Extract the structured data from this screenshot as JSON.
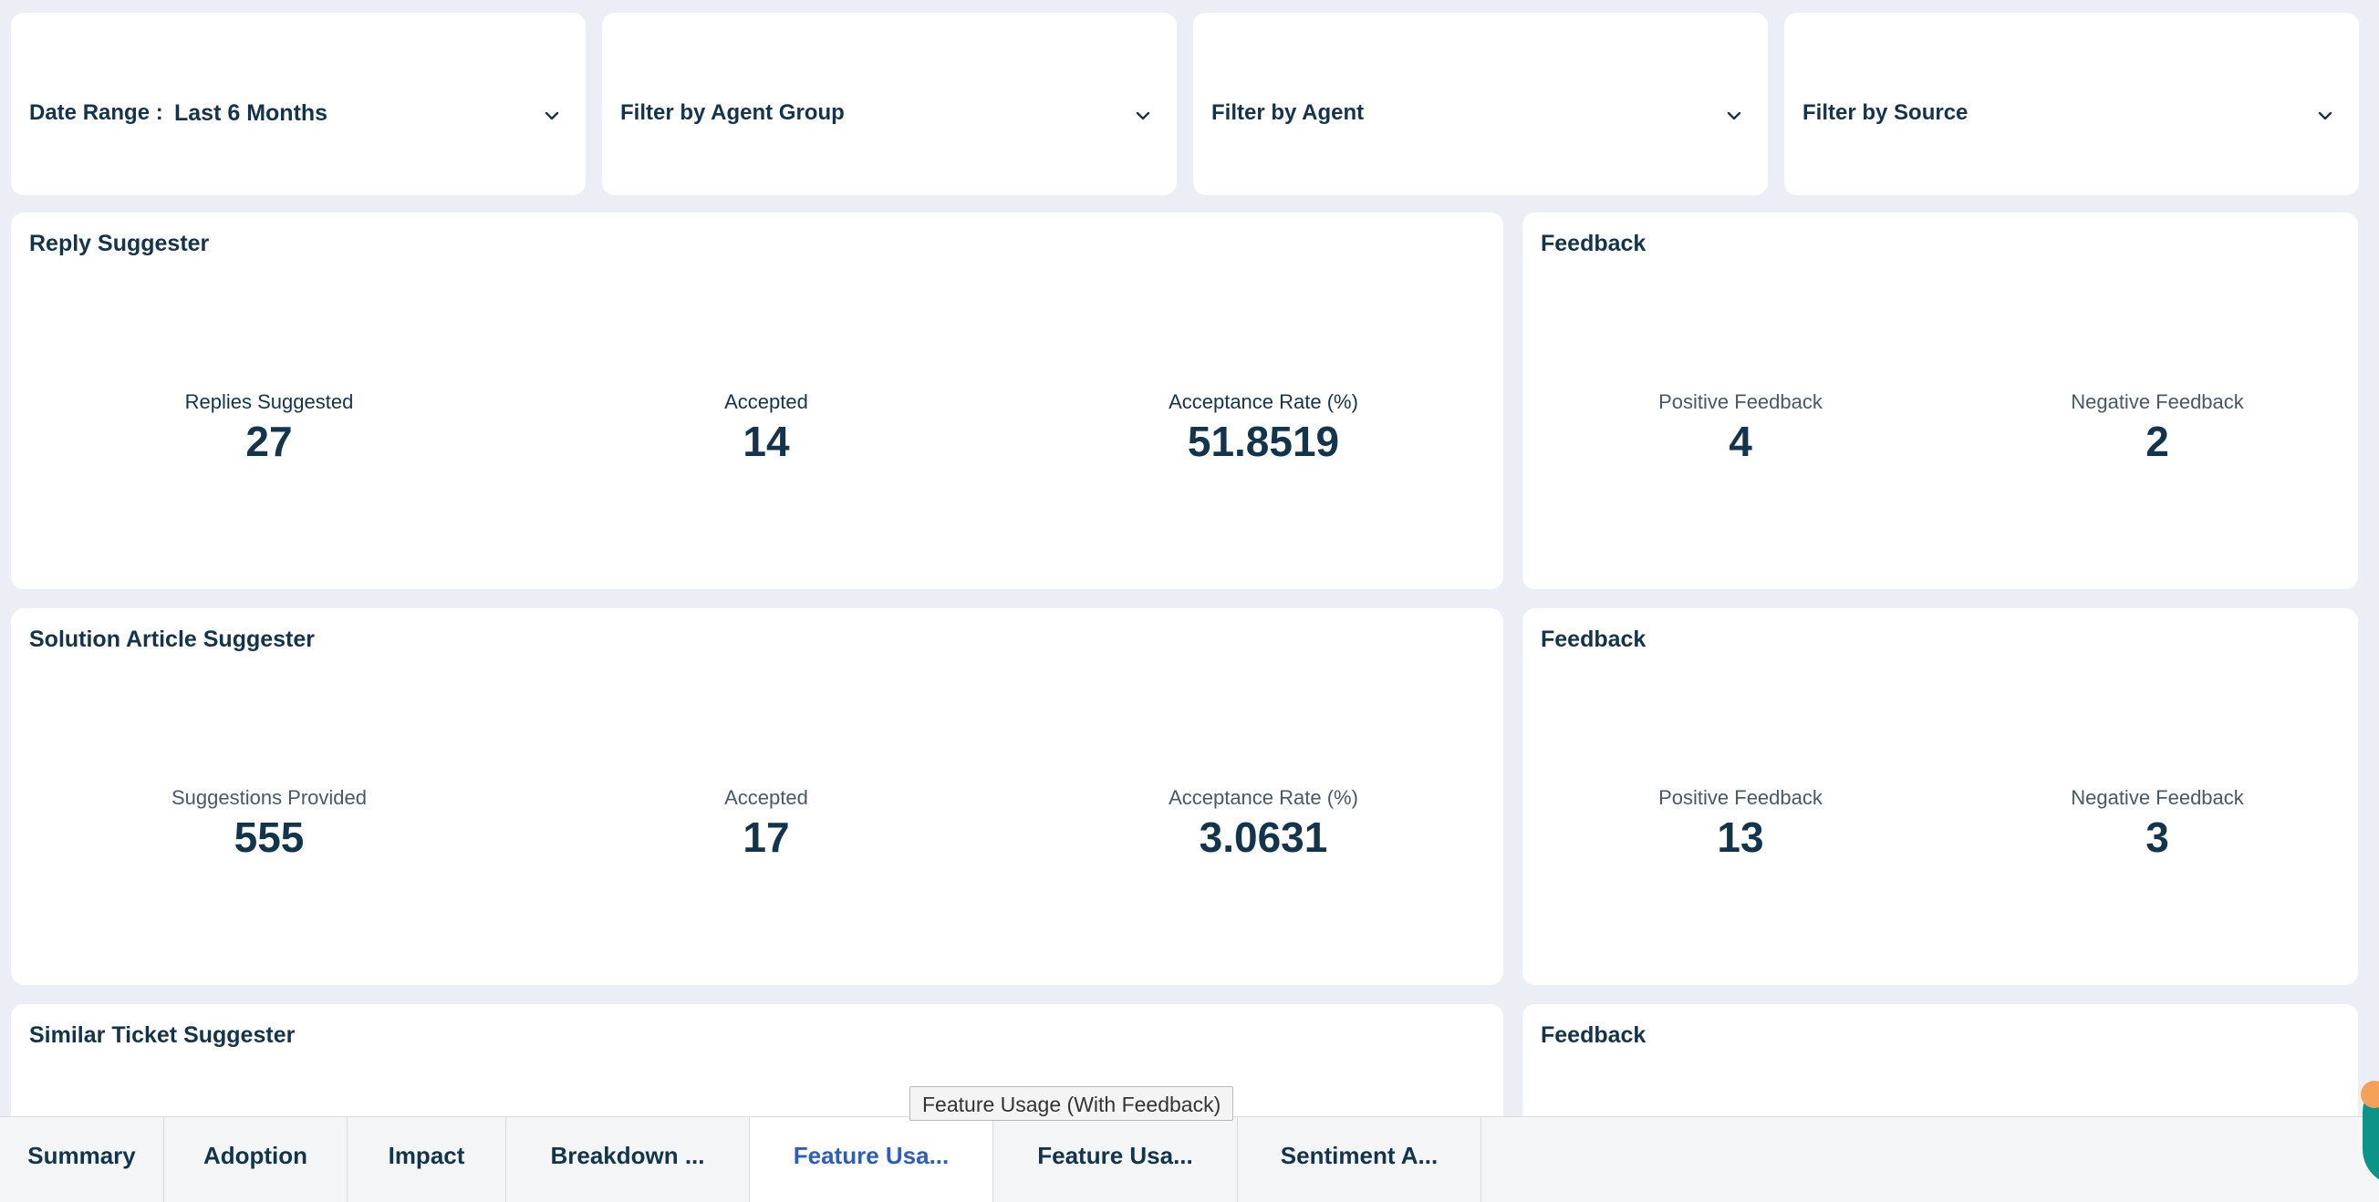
{
  "filters": {
    "date_range_label": "Date Range :",
    "date_range_value": "Last 6 Months",
    "agent_group": "Filter by Agent Group",
    "agent": "Filter by Agent",
    "source": "Filter by Source"
  },
  "reply_suggester": {
    "title": "Reply Suggester",
    "metrics": [
      {
        "label": "Replies Suggested",
        "value": "27"
      },
      {
        "label": "Accepted",
        "value": "14"
      },
      {
        "label": "Acceptance Rate (%)",
        "value": "51.8519"
      }
    ]
  },
  "reply_feedback": {
    "title": "Feedback",
    "metrics": [
      {
        "label": "Positive Feedback",
        "value": "4"
      },
      {
        "label": "Negative Feedback",
        "value": "2"
      }
    ]
  },
  "solution_article_suggester": {
    "title": "Solution Article Suggester",
    "metrics": [
      {
        "label": "Suggestions Provided",
        "value": "555"
      },
      {
        "label": "Accepted",
        "value": "17"
      },
      {
        "label": "Acceptance Rate (%)",
        "value": "3.0631"
      }
    ]
  },
  "solution_feedback": {
    "title": "Feedback",
    "metrics": [
      {
        "label": "Positive Feedback",
        "value": "13"
      },
      {
        "label": "Negative Feedback",
        "value": "3"
      }
    ]
  },
  "similar_ticket_suggester": {
    "title": "Similar Ticket Suggester"
  },
  "similar_feedback": {
    "title": "Feedback"
  },
  "tooltip": "Feature Usage (With Feedback)",
  "tabs": [
    {
      "label": "Summary"
    },
    {
      "label": "Adoption"
    },
    {
      "label": "Impact"
    },
    {
      "label": "Breakdown ..."
    },
    {
      "label": "Feature Usa...",
      "active": true
    },
    {
      "label": "Feature Usa..."
    },
    {
      "label": "Sentiment A..."
    }
  ],
  "colors": {
    "background": "#ebeef5",
    "text": "#12344d",
    "active_tab": "#2c5cc5",
    "widget": "#0d9488"
  }
}
